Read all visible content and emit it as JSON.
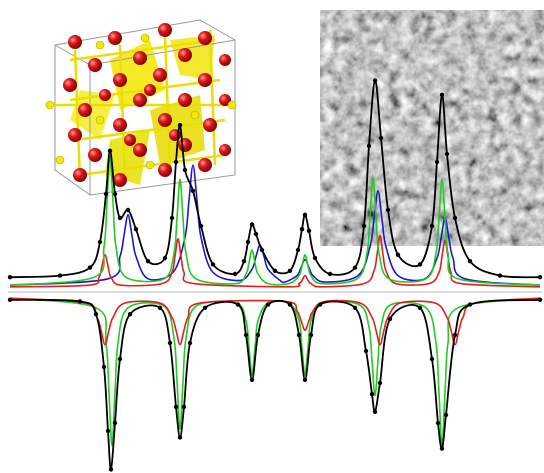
{
  "chart_data": [
    {
      "type": "line",
      "xlim": [
        0,
        544
      ],
      "ylim": [
        0,
        140
      ],
      "series": [
        {
          "color": "#1a1acc",
          "x": [
            10,
            108,
            120,
            124,
            128,
            132,
            136,
            148,
            173,
            185,
            189,
            193,
            197,
            201,
            213,
            240,
            252,
            256,
            260,
            264,
            268,
            280,
            285,
            297,
            301,
            305,
            309,
            313,
            325,
            358,
            370,
            374,
            378,
            382,
            386,
            398,
            425,
            437,
            441,
            445,
            449,
            453,
            465,
            540
          ],
          "values": [
            3,
            7,
            21,
            34,
            47,
            34,
            21,
            7,
            11,
            33,
            56,
            78,
            56,
            33,
            11,
            6,
            13,
            21,
            28,
            21,
            13,
            6,
            5,
            9,
            14,
            19,
            14,
            9,
            5,
            9,
            27,
            44,
            62,
            44,
            27,
            9,
            7,
            20,
            32,
            45,
            32,
            20,
            7,
            3
          ]
        },
        {
          "color": "#e02020",
          "x": [
            10,
            89,
            99,
            102,
            105,
            108,
            111,
            121,
            162,
            172,
            175,
            178,
            181,
            184,
            194,
            289,
            299,
            302,
            305,
            308,
            311,
            321,
            364,
            374,
            377,
            380,
            383,
            386,
            396,
            429,
            439,
            442,
            445,
            448,
            451,
            461,
            540
          ],
          "values": [
            2,
            3,
            8,
            15,
            22,
            15,
            8,
            3,
            4,
            11,
            21,
            32,
            21,
            11,
            4,
            2,
            4,
            6,
            9,
            6,
            4,
            2,
            4,
            12,
            22,
            34,
            22,
            12,
            4,
            4,
            11,
            21,
            31,
            21,
            11,
            4,
            2
          ]
        },
        {
          "color": "#22cc22",
          "x": [
            10,
            94,
            104,
            107,
            110,
            113,
            116,
            126,
            164,
            174,
            177,
            180,
            183,
            186,
            196,
            236,
            246,
            249,
            252,
            255,
            258,
            268,
            289,
            299,
            302,
            305,
            308,
            311,
            321,
            357,
            367,
            370,
            373,
            376,
            379,
            389,
            426,
            436,
            439,
            442,
            445,
            448,
            458,
            540
          ],
          "values": [
            3,
            8,
            27,
            55,
            84,
            55,
            27,
            8,
            7,
            23,
            45,
            69,
            45,
            23,
            7,
            4,
            10,
            17,
            25,
            17,
            10,
            4,
            4,
            9,
            15,
            22,
            15,
            9,
            4,
            7,
            23,
            46,
            70,
            46,
            23,
            7,
            7,
            23,
            45,
            69,
            45,
            23,
            7,
            3
          ]
        },
        {
          "color": "#000000",
          "x": [
            10,
            60,
            90,
            100,
            106,
            110,
            115,
            120,
            128,
            136,
            148,
            165,
            172,
            176,
            180,
            185,
            193,
            201,
            213,
            235,
            244,
            248,
            252,
            256,
            262,
            275,
            290,
            298,
            302,
            305,
            309,
            315,
            330,
            355,
            364,
            369,
            375,
            381,
            388,
            398,
            420,
            432,
            437,
            442,
            447,
            455,
            470,
            500,
            540
          ],
          "values": [
            8,
            9,
            14,
            30,
            60,
            87,
            60,
            45,
            50,
            38,
            18,
            20,
            45,
            80,
            103,
            75,
            62,
            40,
            16,
            10,
            18,
            30,
            41,
            35,
            25,
            12,
            12,
            25,
            38,
            47,
            37,
            20,
            10,
            14,
            40,
            90,
            131,
            95,
            50,
            22,
            16,
            40,
            80,
            122,
            85,
            45,
            18,
            9,
            8
          ]
        }
      ]
    },
    {
      "type": "line",
      "xlim": [
        0,
        544
      ],
      "ylim": [
        -110,
        0
      ],
      "series": [
        {
          "color": "#22cc22",
          "x": [
            10,
            96,
            106,
            109,
            112,
            115,
            118,
            128,
            164,
            174,
            177,
            180,
            183,
            186,
            196,
            236,
            246,
            249,
            252,
            255,
            258,
            268,
            289,
            299,
            302,
            305,
            308,
            311,
            321,
            359,
            369,
            372,
            375,
            378,
            381,
            391,
            426,
            436,
            439,
            442,
            445,
            448,
            458,
            540
          ],
          "values": [
            -2,
            -8,
            -30,
            -61,
            -94,
            -61,
            -30,
            -8,
            -7,
            -27,
            -54,
            -84,
            -54,
            -27,
            -7,
            -5,
            -16,
            -33,
            -50,
            -33,
            -16,
            -5,
            -5,
            -16,
            -33,
            -50,
            -33,
            -16,
            -5,
            -6,
            -20,
            -41,
            -63,
            -41,
            -20,
            -6,
            -8,
            -30,
            -61,
            -94,
            -61,
            -30,
            -8,
            -2
          ]
        },
        {
          "color": "#e02020",
          "x": [
            10,
            85,
            97,
            101,
            105,
            109,
            113,
            125,
            160,
            172,
            176,
            180,
            184,
            188,
            200,
            285,
            297,
            301,
            305,
            309,
            313,
            325,
            360,
            372,
            376,
            380,
            384,
            388,
            400,
            435,
            447,
            451,
            455,
            459,
            463,
            475,
            540
          ],
          "values": [
            -2,
            -5,
            -14,
            -22,
            -31,
            -22,
            -14,
            -5,
            -5,
            -14,
            -22,
            -31,
            -22,
            -14,
            -5,
            -4,
            -10,
            -16,
            -22,
            -16,
            -10,
            -4,
            -5,
            -14,
            -22,
            -31,
            -22,
            -14,
            -5,
            -5,
            -14,
            -22,
            -31,
            -22,
            -14,
            -5,
            -2
          ]
        },
        {
          "color": "#000000",
          "x": [
            10,
            80,
            96,
            104,
            108,
            111,
            115,
            120,
            130,
            160,
            170,
            176,
            180,
            184,
            190,
            205,
            238,
            246,
            252,
            258,
            268,
            290,
            299,
            305,
            311,
            320,
            355,
            366,
            372,
            375,
            380,
            390,
            420,
            432,
            438,
            442,
            446,
            455,
            470,
            540
          ],
          "values": [
            -3,
            -4,
            -12,
            -45,
            -85,
            -109,
            -80,
            -40,
            -12,
            -8,
            -30,
            -70,
            -89,
            -70,
            -30,
            -8,
            -6,
            -25,
            -53,
            -25,
            -6,
            -6,
            -25,
            -53,
            -25,
            -6,
            -8,
            -35,
            -62,
            -73,
            -55,
            -15,
            -8,
            -40,
            -80,
            -96,
            -75,
            -25,
            -6,
            -3
          ]
        }
      ]
    }
  ]
}
